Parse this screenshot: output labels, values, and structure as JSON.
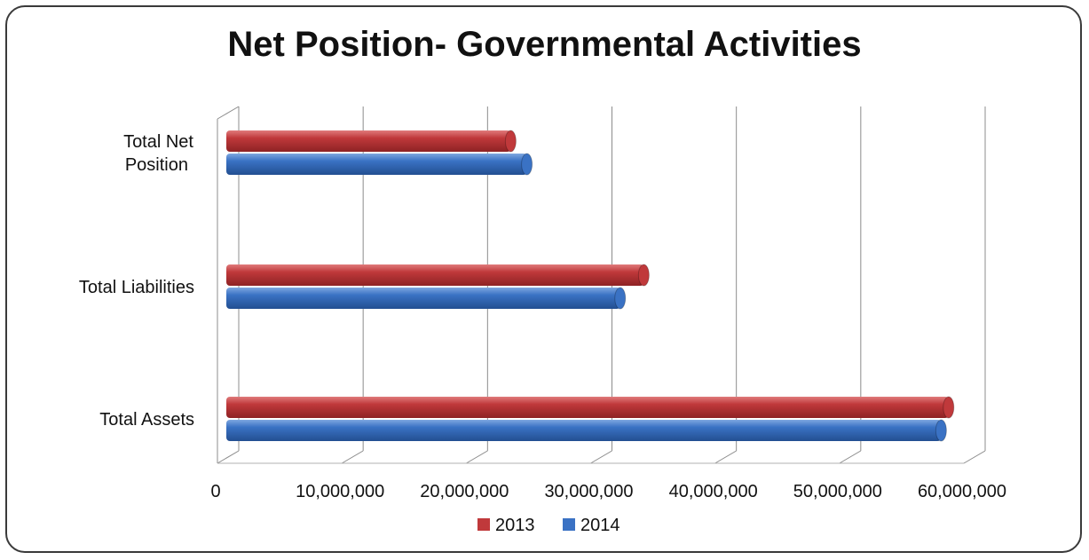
{
  "chart_data": {
    "type": "bar",
    "orientation": "horizontal",
    "title": "Net Position- Governmental Activities",
    "categories": [
      "Total Net Position",
      "Total Liabilities",
      "Total Assets"
    ],
    "category_lines": [
      [
        "Total Net",
        "Position"
      ],
      [
        "Total Liabilities"
      ],
      [
        "Total Assets"
      ]
    ],
    "series": [
      {
        "name": "2013",
        "color": "#c0393b",
        "values": [
          23000000,
          33700000,
          58200000
        ]
      },
      {
        "name": "2014",
        "color": "#3a72c4",
        "values": [
          24300000,
          31800000,
          57600000
        ]
      }
    ],
    "x_ticks": [
      "0",
      "10,000,000",
      "20,000,000",
      "30,000,000",
      "40,000,000",
      "50,000,000",
      "60,000,000"
    ],
    "xlim": [
      0,
      60000000
    ],
    "grid": true,
    "legend": "bottom"
  }
}
